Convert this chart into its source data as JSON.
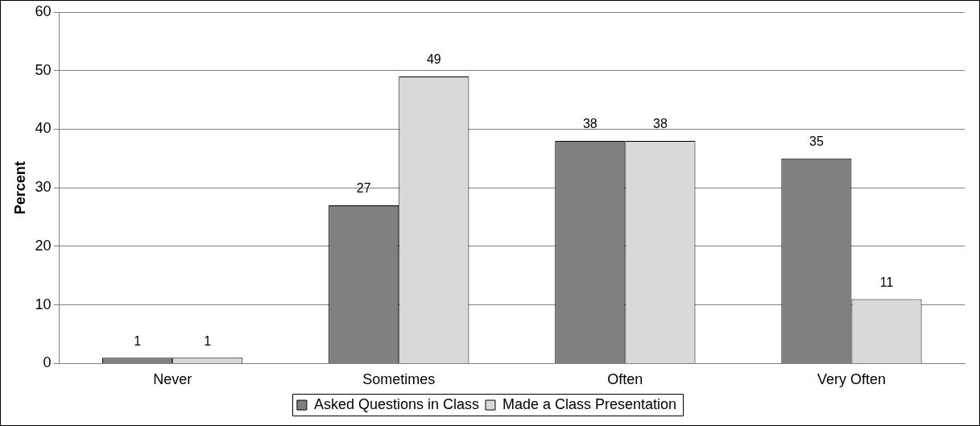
{
  "chart_data": {
    "type": "bar",
    "ylabel": "Percent",
    "categories": [
      "Never",
      "Sometimes",
      "Often",
      "Very Often"
    ],
    "series": [
      {
        "name": "Asked Questions in Class",
        "color": "#808080",
        "values": [
          1,
          27,
          38,
          35
        ]
      },
      {
        "name": "Made a Class Presentation",
        "color": "#d9d9d9",
        "values": [
          1,
          49,
          38,
          11
        ]
      }
    ],
    "ylim": [
      0,
      60
    ],
    "yticks": [
      0,
      10,
      20,
      30,
      40,
      50,
      60
    ],
    "grid": "y",
    "legend": "bottom",
    "data_labels": true
  }
}
